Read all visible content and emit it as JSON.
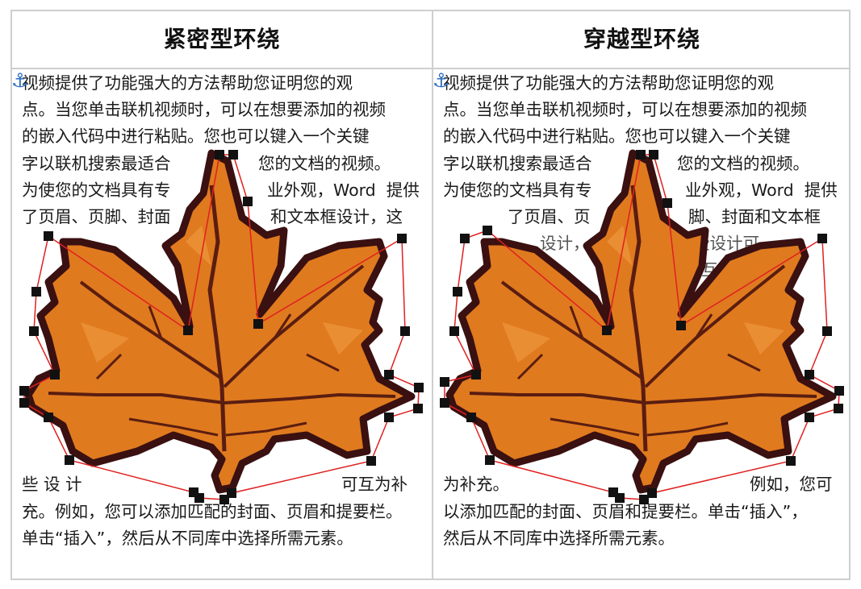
{
  "columns": [
    {
      "heading": "紧密型环绕",
      "lines": [
        "视频提供了功能强大的方法帮助您证明您的观",
        "点。当您单击联机视频时，可以在想要添加的视频",
        "的嵌入代码中进行粘贴。您也可以键入一个关键",
        "字以联机搜索最适合",
        "您的文档的视频。",
        "为使您的文档具有专",
        "业外观，Word  提供",
        "了页眉、页脚、封面",
        "和文本框设计，这",
        "些 设 计",
        "可互为补",
        "充。例如，您可以添加匹配的封面、页眉和提要栏。",
        "单击“插入”，然后从不同库中选择所需元素。"
      ]
    },
    {
      "heading": "穿越型环绕",
      "lines": [
        "视频提供了功能强大的方法帮助您证明您的观",
        "点。当您单击联机视频时，可以在想要添加的视频",
        "的嵌入代码中进行粘贴。您也可以键入一个关键",
        "字以联机搜索最适合",
        "您的文档的视频。",
        "为使您的文档具有专",
        "业外观，Word  提供",
        "了页眉、页",
        "脚、封面和文本框",
        "设计，",
        "些设计可",
        "互",
        "为补充。",
        "例如，您可",
        "以添加匹配的封面、页眉和提要栏。单击“插入”，",
        "然后从不同库中选择所需元素。"
      ]
    }
  ],
  "anchor_icon": "anchor-icon",
  "colors": {
    "leaf": "#e07a1f",
    "leaf_light": "#f4a24a",
    "leaf_outline": "#3a1010",
    "wrap_line": "#e02020",
    "handle": "#111111",
    "border": "#cfcfcf",
    "anchor": "#2d6bbf"
  }
}
